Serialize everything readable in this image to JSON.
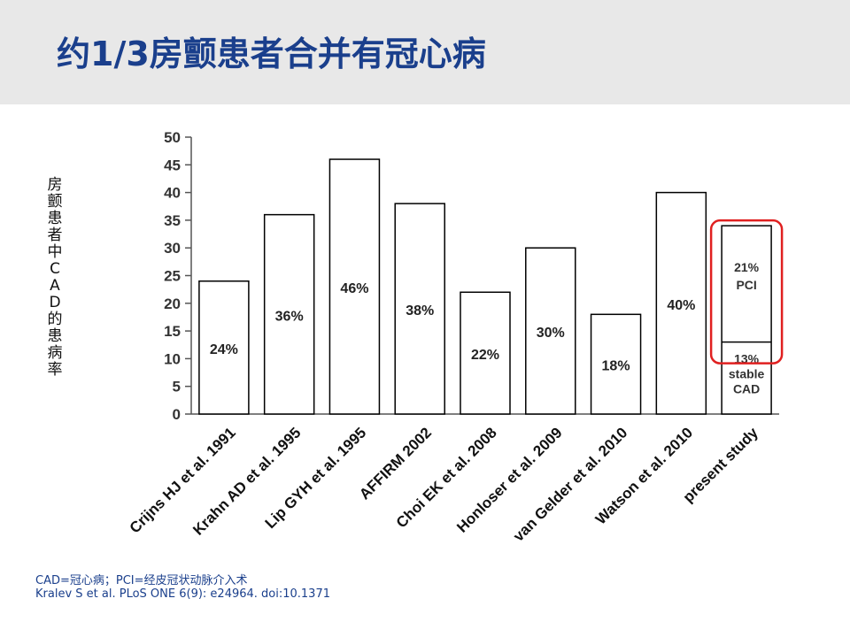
{
  "slide": {
    "title": "约1/3房颤患者合并有冠心病",
    "footnote_line1": "CAD=冠心病；PCI=经皮冠状动脉介入术",
    "footnote_line2": "Kralev S et al. PLoS ONE 6(9): e24964. doi:10.1371"
  },
  "colors": {
    "title": "#1a3f8c",
    "footnote": "#1a3f8c",
    "bar_fill": "#ffffff",
    "bar_stroke": "#000000",
    "highlight_box": "#e02020"
  },
  "chart_data": {
    "type": "bar",
    "title": "",
    "ylabel": "房颤患者中CAD的患病率",
    "xlabel": "",
    "ylim": [
      0,
      50
    ],
    "yticks": [
      0,
      5,
      10,
      15,
      20,
      25,
      30,
      35,
      40,
      45,
      50
    ],
    "grid": false,
    "categories": [
      "Crijns HJ et al. 1991",
      "Krahn AD et al. 1995",
      "Lip GYH et al. 1995",
      "AFFIRM 2002",
      "Choi EK et al. 2008",
      "Honloser et al. 2009",
      "van Gelder et al. 2010",
      "Watson et al. 2010",
      "present study"
    ],
    "values": [
      24,
      36,
      46,
      38,
      22,
      30,
      18,
      40,
      34
    ],
    "data_labels": [
      "24%",
      "36%",
      "46%",
      "38%",
      "22%",
      "30%",
      "18%",
      "40%",
      ""
    ],
    "present_study_segments": [
      {
        "name": "stable CAD",
        "value": 13,
        "label_lines": [
          "13%",
          "stable",
          "CAD"
        ]
      },
      {
        "name": "PCI",
        "value": 21,
        "label_lines": [
          "21%",
          "PCI"
        ]
      }
    ],
    "highlight": "present study"
  }
}
